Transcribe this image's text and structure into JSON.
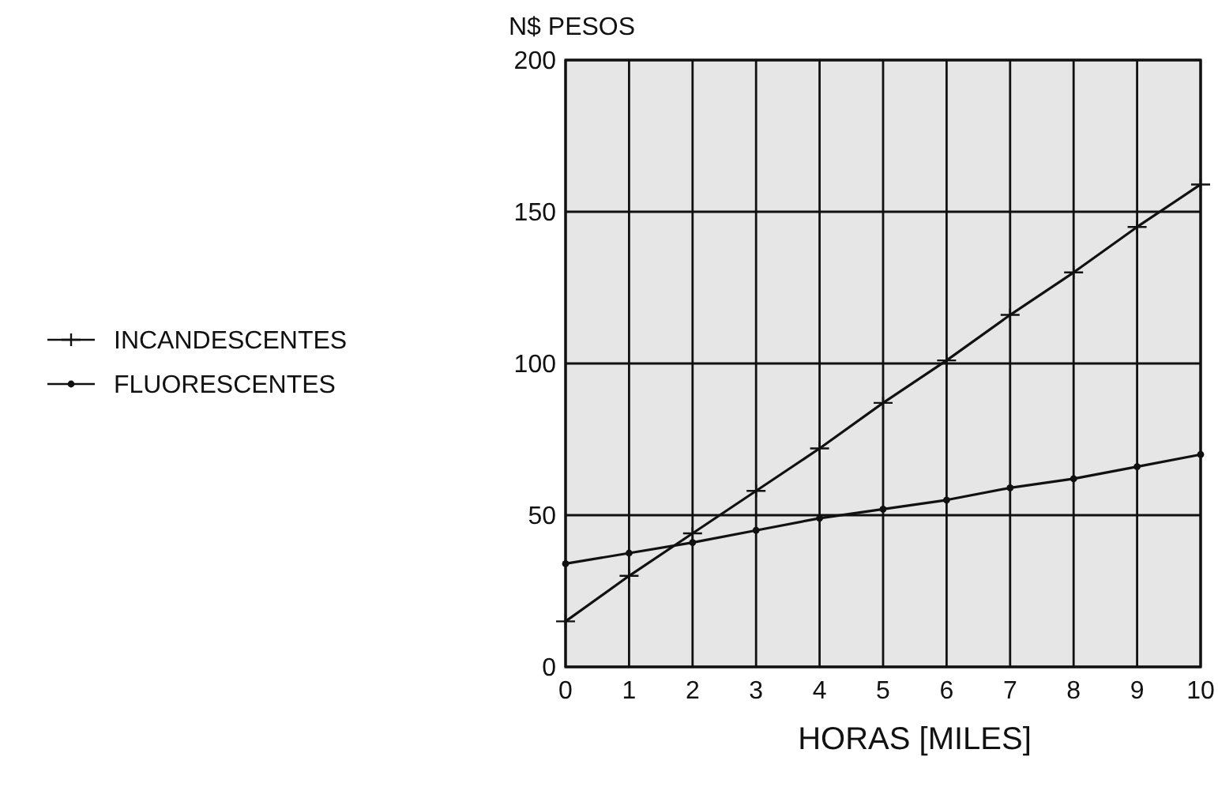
{
  "chart_data": {
    "type": "line",
    "ylabel": "N$ PESOS",
    "xlabel": "HORAS [MILES]",
    "x": [
      0,
      1,
      2,
      3,
      4,
      5,
      6,
      7,
      8,
      9,
      10
    ],
    "series": [
      {
        "name": "INCANDESCENTES",
        "color": "#111111",
        "marker": "cross",
        "values": [
          15,
          30,
          44,
          58,
          72,
          87,
          101,
          116,
          130,
          145,
          159
        ]
      },
      {
        "name": "FLUORESCENTES",
        "color": "#111111",
        "marker": "circle",
        "values": [
          34,
          37.5,
          41,
          45,
          49,
          52,
          55,
          59,
          62,
          66,
          70
        ]
      }
    ],
    "xlim": [
      0,
      10
    ],
    "xticks": [
      0,
      1,
      2,
      3,
      4,
      5,
      6,
      7,
      8,
      9,
      10
    ],
    "ylim": [
      0,
      200
    ],
    "yticks": [
      0,
      50,
      100,
      150,
      200
    ],
    "grid": true,
    "legend": "left",
    "line_style": "solid"
  }
}
